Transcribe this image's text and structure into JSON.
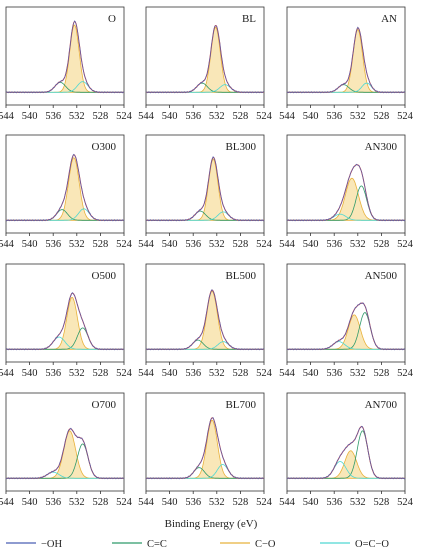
{
  "chart_data": {
    "type": "line",
    "xlabel": "Binding Energy (eV)",
    "x_reversed": true,
    "xlim": [
      544,
      524
    ],
    "x_ticks": [
      "544",
      "540",
      "536",
      "532",
      "528",
      "524"
    ],
    "components": [
      {
        "name": "−OH",
        "color": "#4b5fb4"
      },
      {
        "name": "C=C",
        "color": "#2f9a6a"
      },
      {
        "name": "C−O",
        "color": "#e8b23c"
      },
      {
        "name": "O=C−O",
        "color": "#4fd8d2"
      }
    ],
    "panels": [
      {
        "title": "O",
        "peaks": [
          {
            "center": 532.4,
            "height": 0.88,
            "width": 0.8
          },
          {
            "center": 534.8,
            "height": 0.13,
            "width": 0.9
          },
          {
            "center": 531.0,
            "height": 0.14,
            "width": 0.9
          }
        ],
        "fill": 0
      },
      {
        "title": "BL",
        "peaks": [
          {
            "center": 532.2,
            "height": 0.85,
            "width": 0.8
          },
          {
            "center": 534.5,
            "height": 0.12,
            "width": 0.9
          },
          {
            "center": 530.6,
            "height": 0.1,
            "width": 0.9
          }
        ],
        "fill": 0
      },
      {
        "title": "AN",
        "peaks": [
          {
            "center": 532.0,
            "height": 0.82,
            "width": 0.8
          },
          {
            "center": 534.4,
            "height": 0.1,
            "width": 0.9
          },
          {
            "center": 530.5,
            "height": 0.12,
            "width": 0.8
          }
        ],
        "fill": 0
      },
      {
        "title": "O300",
        "peaks": [
          {
            "center": 532.5,
            "height": 0.82,
            "width": 0.9
          },
          {
            "center": 534.5,
            "height": 0.14,
            "width": 0.9
          },
          {
            "center": 530.8,
            "height": 0.15,
            "width": 0.9
          }
        ],
        "fill": 0
      },
      {
        "title": "BL300",
        "peaks": [
          {
            "center": 532.6,
            "height": 0.8,
            "width": 0.8
          },
          {
            "center": 534.8,
            "height": 0.12,
            "width": 0.9
          },
          {
            "center": 530.9,
            "height": 0.11,
            "width": 0.9
          }
        ],
        "fill": 0
      },
      {
        "title": "AN300",
        "peaks": [
          {
            "center": 533.0,
            "height": 0.55,
            "width": 1.1
          },
          {
            "center": 531.4,
            "height": 0.45,
            "width": 0.9
          },
          {
            "center": 535.0,
            "height": 0.08,
            "width": 1.0
          }
        ],
        "fill": 0
      },
      {
        "title": "O500",
        "peaks": [
          {
            "center": 532.8,
            "height": 0.68,
            "width": 0.9
          },
          {
            "center": 531.0,
            "height": 0.28,
            "width": 0.9
          },
          {
            "center": 535.0,
            "height": 0.16,
            "width": 1.0
          }
        ],
        "fill": 0
      },
      {
        "title": "BL500",
        "peaks": [
          {
            "center": 532.8,
            "height": 0.76,
            "width": 0.9
          },
          {
            "center": 535.2,
            "height": 0.12,
            "width": 0.9
          },
          {
            "center": 530.9,
            "height": 0.1,
            "width": 0.9
          }
        ],
        "fill": 0
      },
      {
        "title": "AN500",
        "peaks": [
          {
            "center": 532.6,
            "height": 0.45,
            "width": 1.0
          },
          {
            "center": 530.8,
            "height": 0.48,
            "width": 0.9
          },
          {
            "center": 535.2,
            "height": 0.1,
            "width": 1.0
          }
        ],
        "fill": 0
      },
      {
        "title": "O700",
        "peaks": [
          {
            "center": 533.2,
            "height": 0.62,
            "width": 1.0
          },
          {
            "center": 531.0,
            "height": 0.45,
            "width": 0.9
          },
          {
            "center": 536.0,
            "height": 0.08,
            "width": 1.0
          }
        ],
        "fill": 0
      },
      {
        "title": "BL700",
        "peaks": [
          {
            "center": 532.8,
            "height": 0.76,
            "width": 0.9
          },
          {
            "center": 535.0,
            "height": 0.14,
            "width": 0.9
          },
          {
            "center": 531.0,
            "height": 0.18,
            "width": 0.9
          }
        ],
        "fill": 0
      },
      {
        "title": "AN700",
        "peaks": [
          {
            "center": 533.2,
            "height": 0.36,
            "width": 1.0
          },
          {
            "center": 531.2,
            "height": 0.62,
            "width": 0.9
          },
          {
            "center": 535.0,
            "height": 0.22,
            "width": 1.0
          }
        ],
        "fill": 0
      }
    ],
    "grid": false,
    "legend_position": "bottom"
  }
}
